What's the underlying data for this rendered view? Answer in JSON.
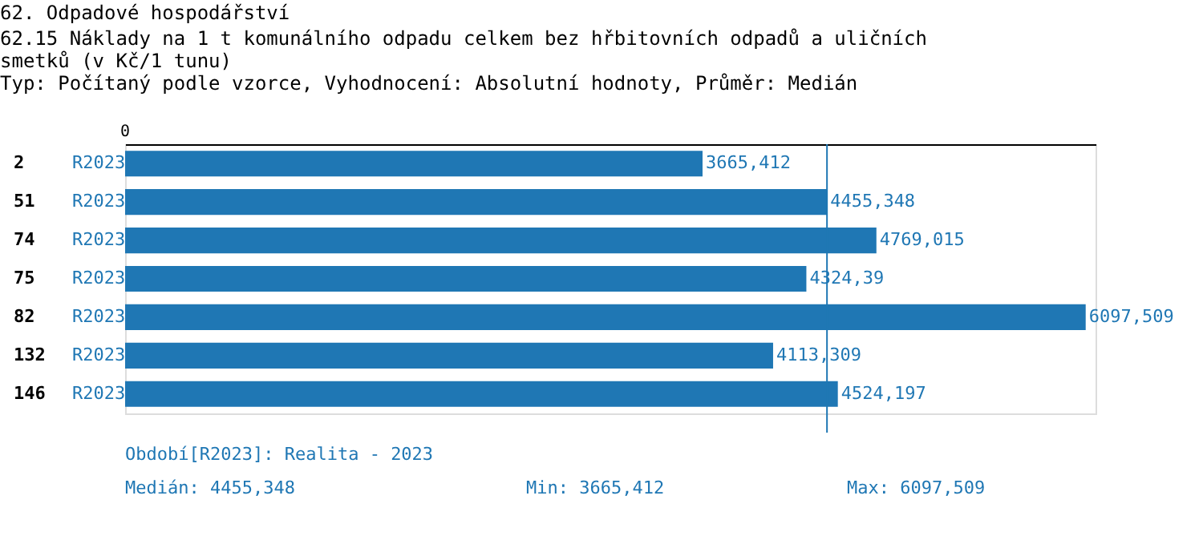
{
  "chart_data": {
    "type": "bar",
    "orientation": "horizontal",
    "title": "62. Odpadové hospodářství",
    "subtitle": "62.15 Náklady na 1 t komunálního odpadu celkem bez hřbitovních odpadů a uličních smetků (v Kč/1 tunu)",
    "categories": [
      "2",
      "51",
      "74",
      "75",
      "82",
      "132",
      "146"
    ],
    "series": [
      {
        "name": "R2023",
        "color": "#1f77b4",
        "values": [
          3665.412,
          4455.348,
          4769.015,
          4324.39,
          6097.509,
          4113.309,
          4524.197
        ],
        "value_labels": [
          "3665,412",
          "4455,348",
          "4769,015",
          "4324,39",
          "6097,509",
          "4113,309",
          "4524,197"
        ]
      }
    ],
    "xlim": [
      0,
      6160
    ],
    "ref_lines": [
      {
        "axis": "x",
        "value": 4455.348,
        "color": "#1f77b4"
      }
    ],
    "annotations": [
      "0",
      "Typ: Počítaný podle vzorce, Vyhodnocení: Absolutní hodnoty, Průměr: Medián",
      "Období[R2023]: Realita - 2023",
      "Medián: 4455,348",
      "Min: 3665,412",
      "Max: 6097,509"
    ]
  }
}
